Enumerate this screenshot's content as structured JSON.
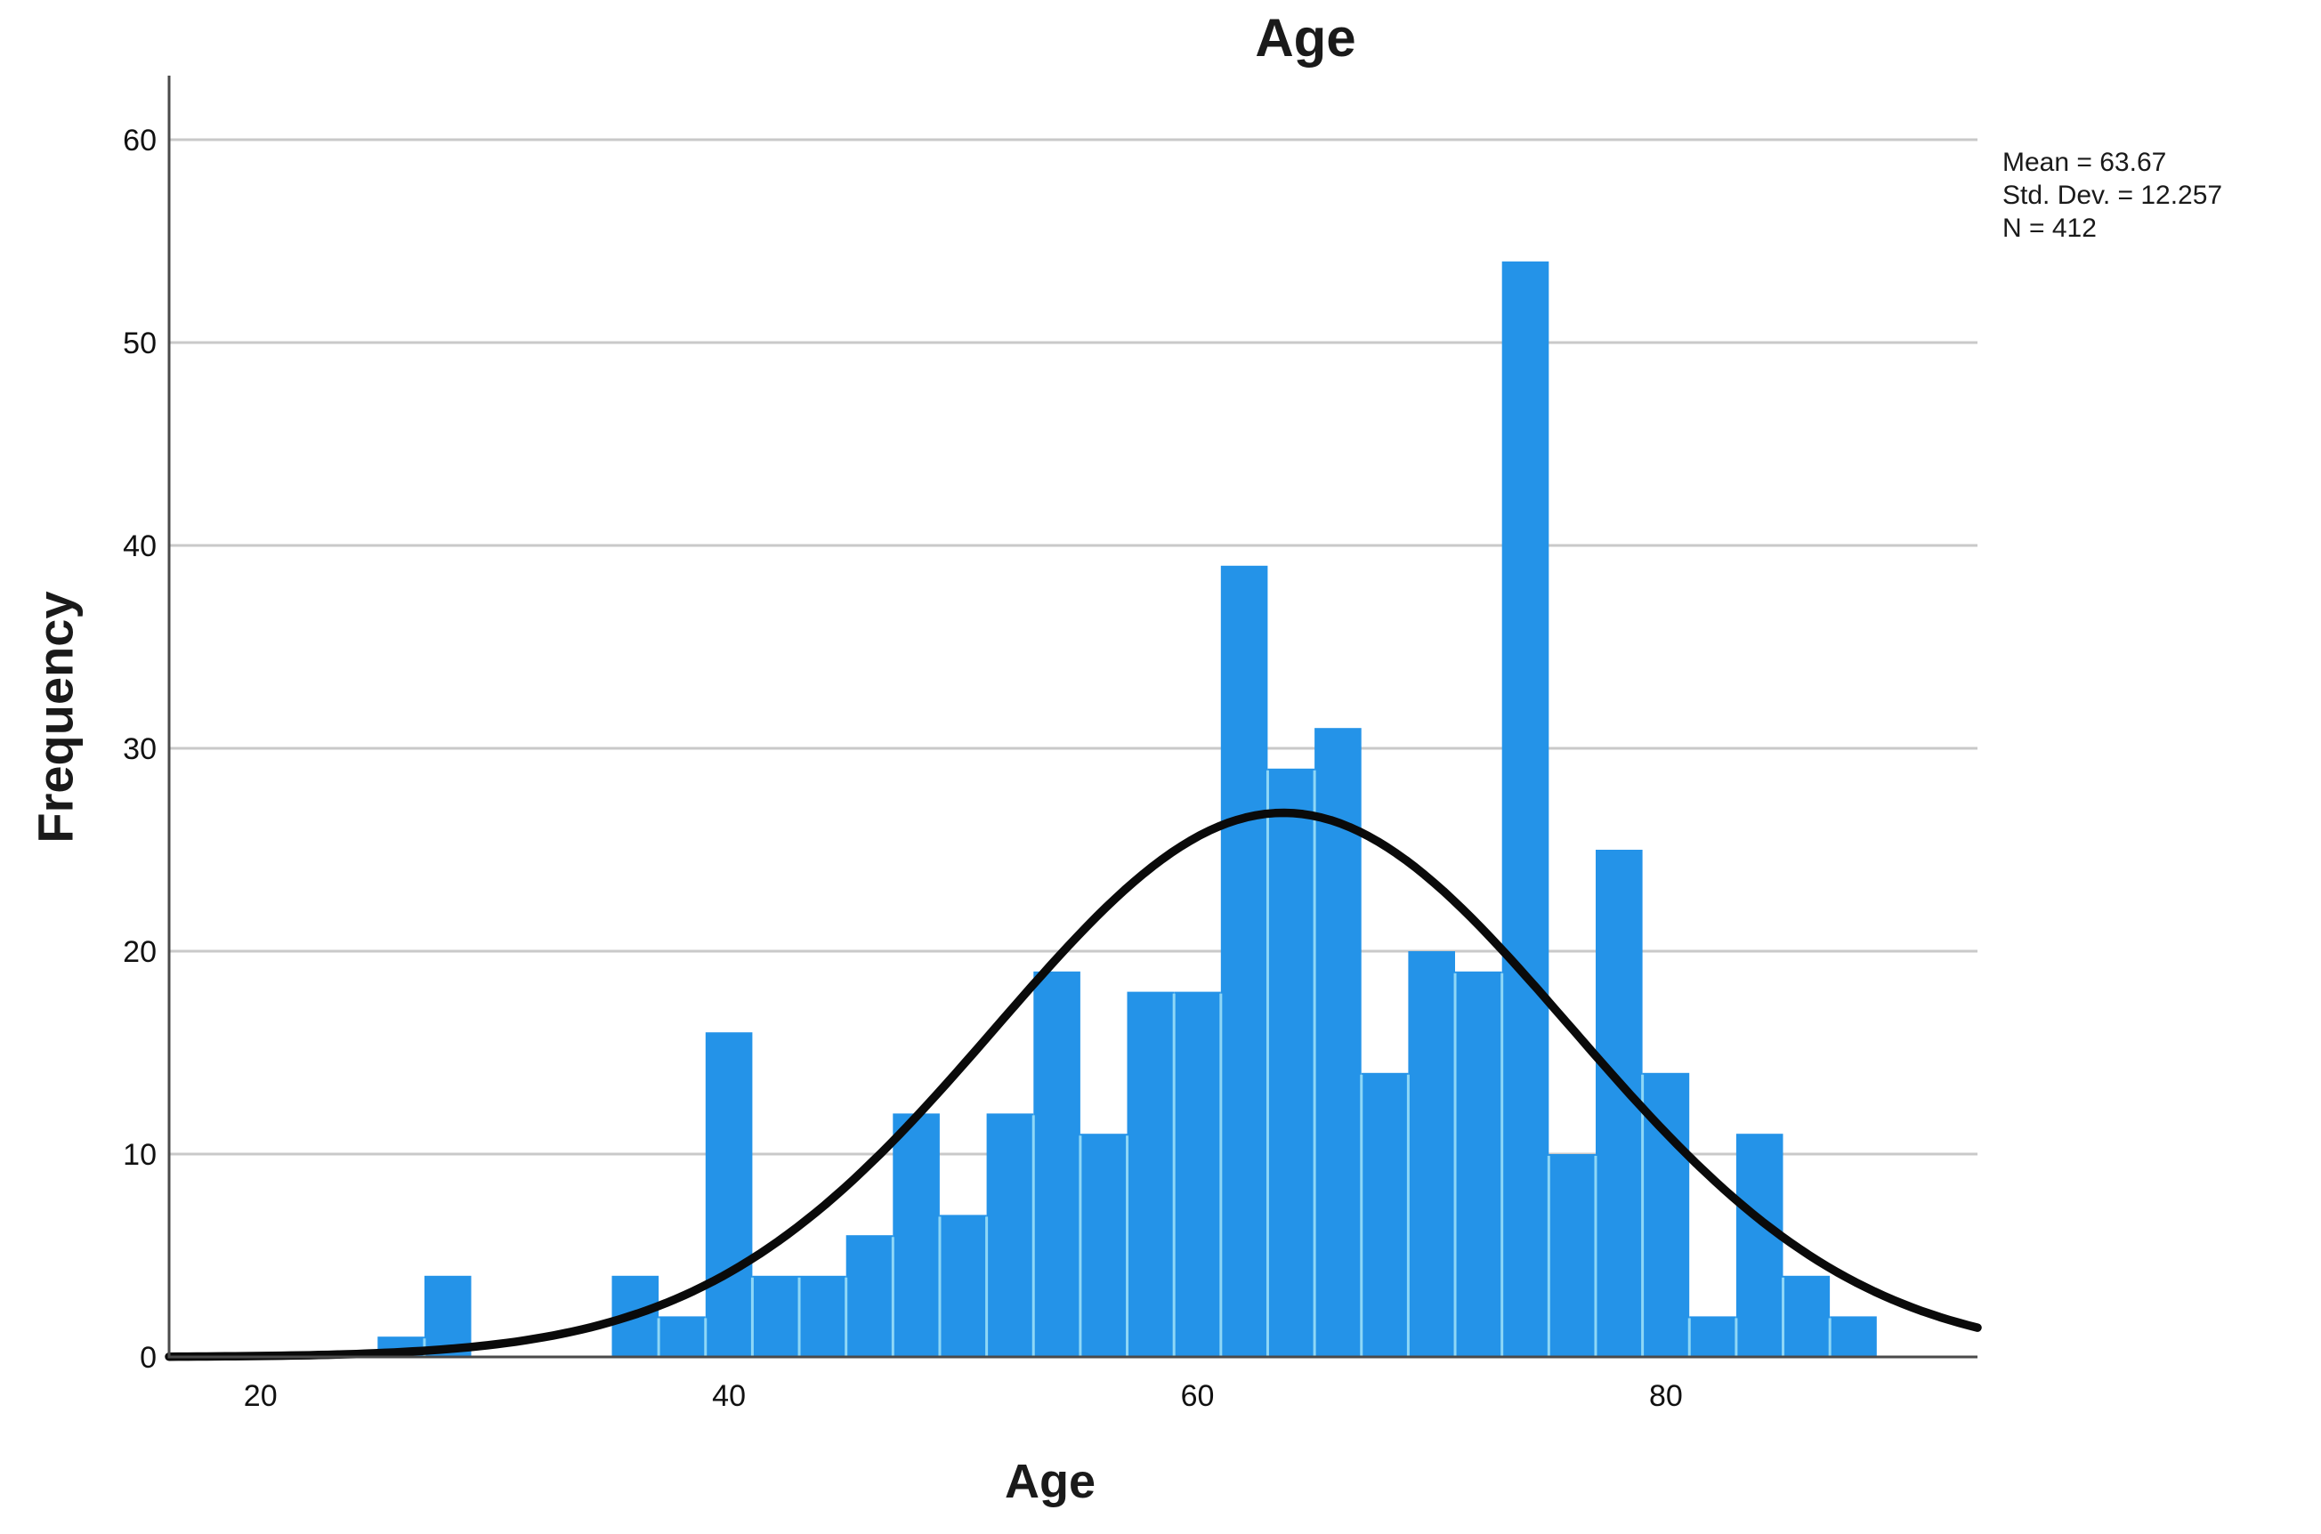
{
  "figure": {
    "title": "Age",
    "x_axis_label": "Age",
    "y_axis_label": "Frequency",
    "stats": {
      "line1": "Mean = 63.67",
      "line2": "Std. Dev. = 12.257",
      "line3": "N = 412"
    }
  },
  "chart_data": {
    "type": "bar",
    "subtype": "histogram-with-normal-curve",
    "title": "Age",
    "xlabel": "Age",
    "ylabel": "Frequency",
    "bin_start": 25,
    "bin_width": 2,
    "bin_edges": [
      25,
      27,
      29,
      31,
      33,
      35,
      37,
      39,
      41,
      43,
      45,
      47,
      49,
      51,
      53,
      55,
      57,
      59,
      61,
      63,
      65,
      67,
      69,
      71,
      73,
      75,
      77,
      79,
      81,
      83,
      85,
      87,
      89
    ],
    "counts": [
      1,
      4,
      0,
      0,
      0,
      4,
      2,
      16,
      4,
      4,
      6,
      12,
      7,
      12,
      19,
      11,
      18,
      18,
      39,
      29,
      31,
      14,
      20,
      19,
      54,
      10,
      25,
      14,
      2,
      11,
      4,
      2
    ],
    "x_ticks": [
      20,
      40,
      60,
      80
    ],
    "y_ticks": [
      0,
      10,
      20,
      30,
      40,
      50,
      60
    ],
    "x_range": [
      16.1,
      93.3
    ],
    "y_range": [
      0,
      63
    ],
    "grid": "horizontal",
    "legend_position": "none",
    "normal_curve": {
      "mean": 63.67,
      "std_dev": 12.257,
      "n": 412
    },
    "colors": {
      "bar_fill": "#2493e8",
      "bar_divider": "#8ed7f6",
      "curve": "#0a0a0a",
      "gridline": "#c9c9c9",
      "axis": "#4a4a4a",
      "text": "#111111"
    }
  }
}
